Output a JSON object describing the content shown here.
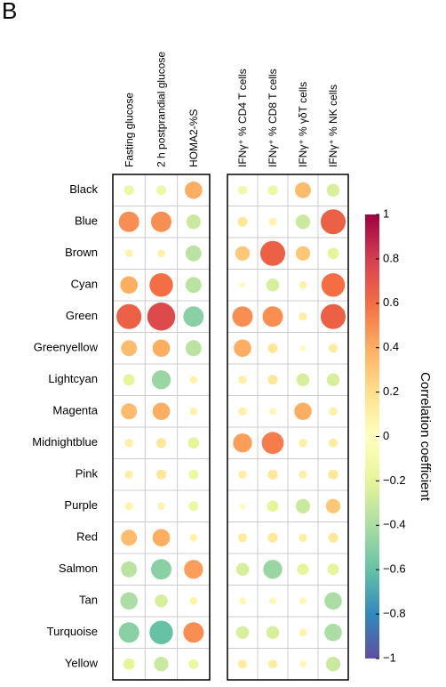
{
  "chart_data": {
    "type": "bubble-matrix",
    "panel_label": "B",
    "columns": [
      "Fasting glucose",
      "2 h postprandial glucose",
      "HOMA2-%S",
      "IFNγ⁺ % CD4 T cells",
      "IFNγ⁺ % CD8 T cells",
      "IFNγ⁺ % γδT cells",
      "IFNγ⁺ % NK cells"
    ],
    "rows": [
      "Black",
      "Blue",
      "Brown",
      "Cyan",
      "Green",
      "Greenyellow",
      "Lightcyan",
      "Magenta",
      "Midnightblue",
      "Pink",
      "Purple",
      "Red",
      "Salmon",
      "Tan",
      "Turquoise",
      "Yellow"
    ],
    "values": [
      [
        -0.15,
        -0.15,
        0.4,
        -0.12,
        -0.15,
        0.35,
        -0.25
      ],
      [
        0.5,
        0.5,
        -0.3,
        0.15,
        0.08,
        -0.3,
        0.65
      ],
      [
        0.08,
        0.08,
        -0.35,
        0.3,
        0.65,
        0.3,
        -0.2
      ],
      [
        0.4,
        0.6,
        -0.35,
        0.02,
        -0.25,
        0.08,
        0.6
      ],
      [
        0.65,
        0.75,
        -0.5,
        0.5,
        0.5,
        0.1,
        0.65
      ],
      [
        0.35,
        0.4,
        -0.35,
        0.4,
        0.15,
        0.02,
        0.12
      ],
      [
        -0.2,
        -0.45,
        0.08,
        0.1,
        0.15,
        -0.25,
        -0.25
      ],
      [
        0.35,
        0.4,
        0.08,
        0.1,
        0.05,
        0.4,
        0.1
      ],
      [
        0.1,
        0.15,
        -0.2,
        0.45,
        0.55,
        0.1,
        0.12
      ],
      [
        0.1,
        0.15,
        -0.15,
        0.1,
        0.15,
        0.1,
        0.15
      ],
      [
        0.08,
        0.07,
        -0.15,
        0.02,
        -0.2,
        -0.3,
        0.3
      ],
      [
        0.35,
        0.4,
        0.08,
        0.12,
        0.15,
        0.1,
        0.15
      ],
      [
        -0.35,
        -0.5,
        0.45,
        -0.25,
        -0.45,
        -0.2,
        -0.2
      ],
      [
        -0.4,
        -0.25,
        0.08,
        0.05,
        0.05,
        0.05,
        -0.4
      ],
      [
        -0.5,
        -0.6,
        0.5,
        -0.25,
        -0.25,
        0.08,
        -0.4
      ],
      [
        -0.2,
        -0.3,
        -0.15,
        0.12,
        0.12,
        0.05,
        -0.3
      ]
    ],
    "colorbar_label": "Correlation coefficient",
    "clim": [
      -1,
      1
    ],
    "colorscale": [
      "#5e4fa2",
      "#3288bd",
      "#66c2a5",
      "#abdda4",
      "#e6f598",
      "#ffffbf",
      "#fee08b",
      "#fdae61",
      "#f46d43",
      "#d53e4f",
      "#9e0142"
    ],
    "cticks": [
      1,
      0.8,
      0.6,
      0.4,
      0.2,
      0,
      {
        "value": -0.2,
        "label": "−0.2"
      },
      {
        "value": -0.4,
        "label": "−0.4"
      },
      {
        "value": -0.6,
        "label": "−0.6"
      },
      {
        "value": -0.8,
        "label": "−0.8"
      },
      {
        "value": -1,
        "label": "−1"
      }
    ]
  }
}
